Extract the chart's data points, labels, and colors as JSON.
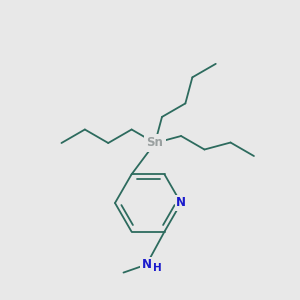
{
  "bg_color": "#e8e8e8",
  "bond_color": "#2d6b5e",
  "sn_color": "#9aa0a0",
  "n_color": "#1a1acc",
  "fig_width": 3.0,
  "fig_height": 3.0,
  "dpi": 100,
  "sn_label": "Sn",
  "n_label": "N",
  "h_label": "H",
  "lw": 1.3,
  "font_size": 8.5
}
